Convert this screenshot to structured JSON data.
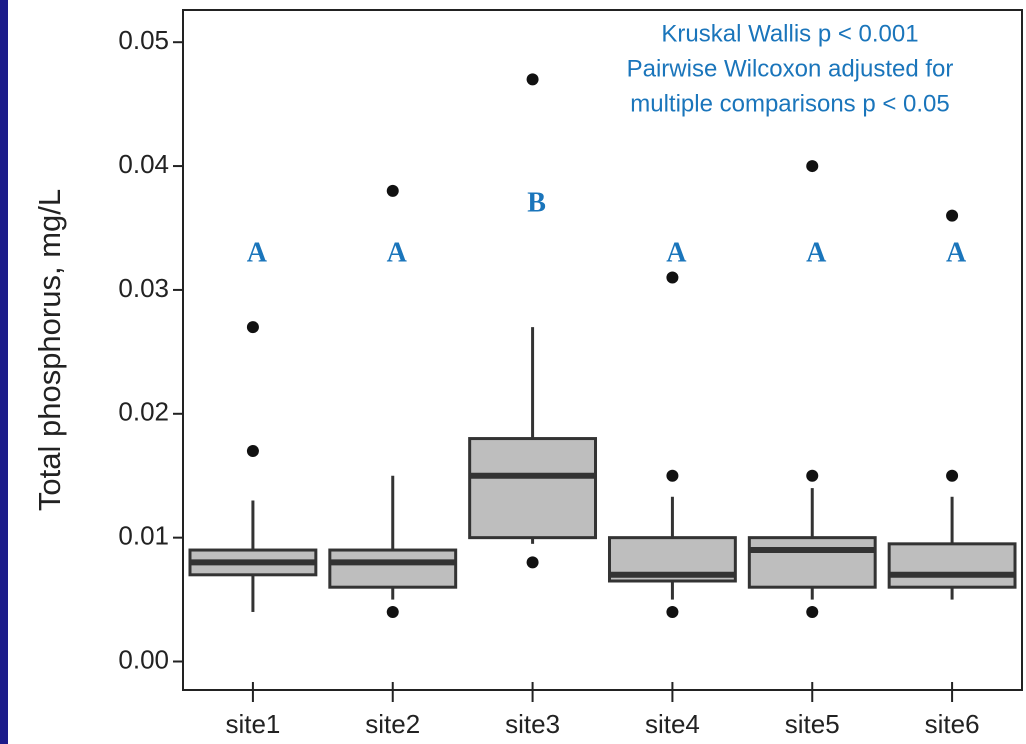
{
  "chart_data": {
    "type": "boxplot",
    "y_label": "Total phosphorus, mg/L",
    "annotation": [
      "Kruskal Wallis p < 0.001",
      "Pairwise Wilcoxon adjusted for",
      "multiple comparisons p < 0.05"
    ],
    "categories": [
      "site1",
      "site2",
      "site3",
      "site4",
      "site5",
      "site6"
    ],
    "group_letters": [
      "A",
      "A",
      "B",
      "A",
      "A",
      "A"
    ],
    "boxes": [
      {
        "whisker_low": 0.004,
        "q1": 0.007,
        "median": 0.008,
        "q3": 0.009,
        "whisker_high": 0.013,
        "outliers": [
          0.017,
          0.027
        ]
      },
      {
        "whisker_low": 0.005,
        "q1": 0.006,
        "median": 0.008,
        "q3": 0.009,
        "whisker_high": 0.015,
        "outliers": [
          0.004,
          0.038
        ]
      },
      {
        "whisker_low": 0.0095,
        "q1": 0.01,
        "median": 0.015,
        "q3": 0.018,
        "whisker_high": 0.027,
        "outliers": [
          0.008,
          0.047
        ]
      },
      {
        "whisker_low": 0.005,
        "q1": 0.0065,
        "median": 0.007,
        "q3": 0.01,
        "whisker_high": 0.0133,
        "outliers": [
          0.004,
          0.015,
          0.031
        ]
      },
      {
        "whisker_low": 0.005,
        "q1": 0.006,
        "median": 0.009,
        "q3": 0.01,
        "whisker_high": 0.014,
        "outliers": [
          0.004,
          0.015,
          0.04
        ]
      },
      {
        "whisker_low": 0.005,
        "q1": 0.006,
        "median": 0.007,
        "q3": 0.0095,
        "whisker_high": 0.0133,
        "outliers": [
          0.015,
          0.036
        ]
      }
    ],
    "box_color": "#bebebe",
    "annotation_color": "#1a75bb",
    "ylim": [
      -0.0023,
      0.0526
    ],
    "yticks": [
      {
        "value": 0,
        "label": "0.00"
      },
      0.01,
      0.02,
      0.03,
      0.04,
      0.05
    ]
  }
}
